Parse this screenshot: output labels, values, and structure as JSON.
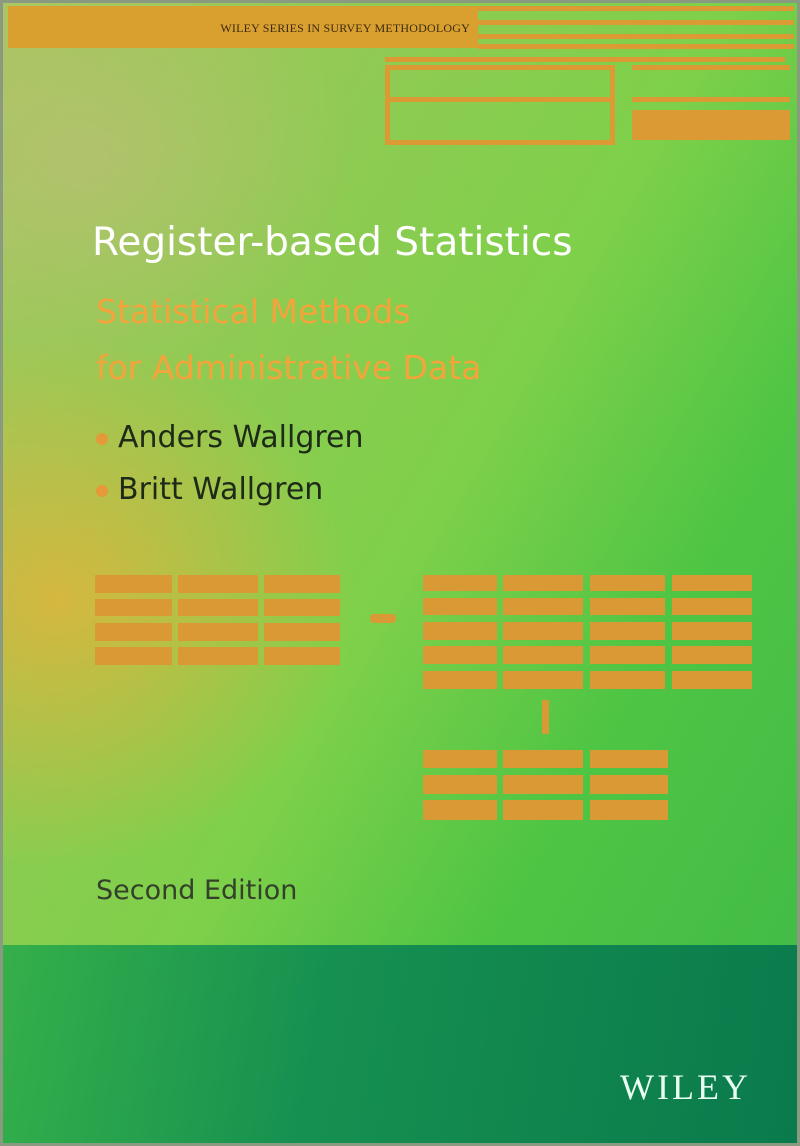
{
  "cover": {
    "series": "WILEY SERIES IN SURVEY METHODOLOGY",
    "title": "Register-based Statistics",
    "subtitle_line1": "Statistical Methods",
    "subtitle_line2": "for Administrative Data",
    "authors": [
      "Anders Wallgren",
      "Britt Wallgren"
    ],
    "edition": "Second Edition",
    "publisher": "WILEY"
  },
  "colors": {
    "accent_orange": "#d99a35",
    "title_white": "#ffffff",
    "subtitle_orange": "#f4a43a",
    "band_green": "#0a7a4c"
  }
}
